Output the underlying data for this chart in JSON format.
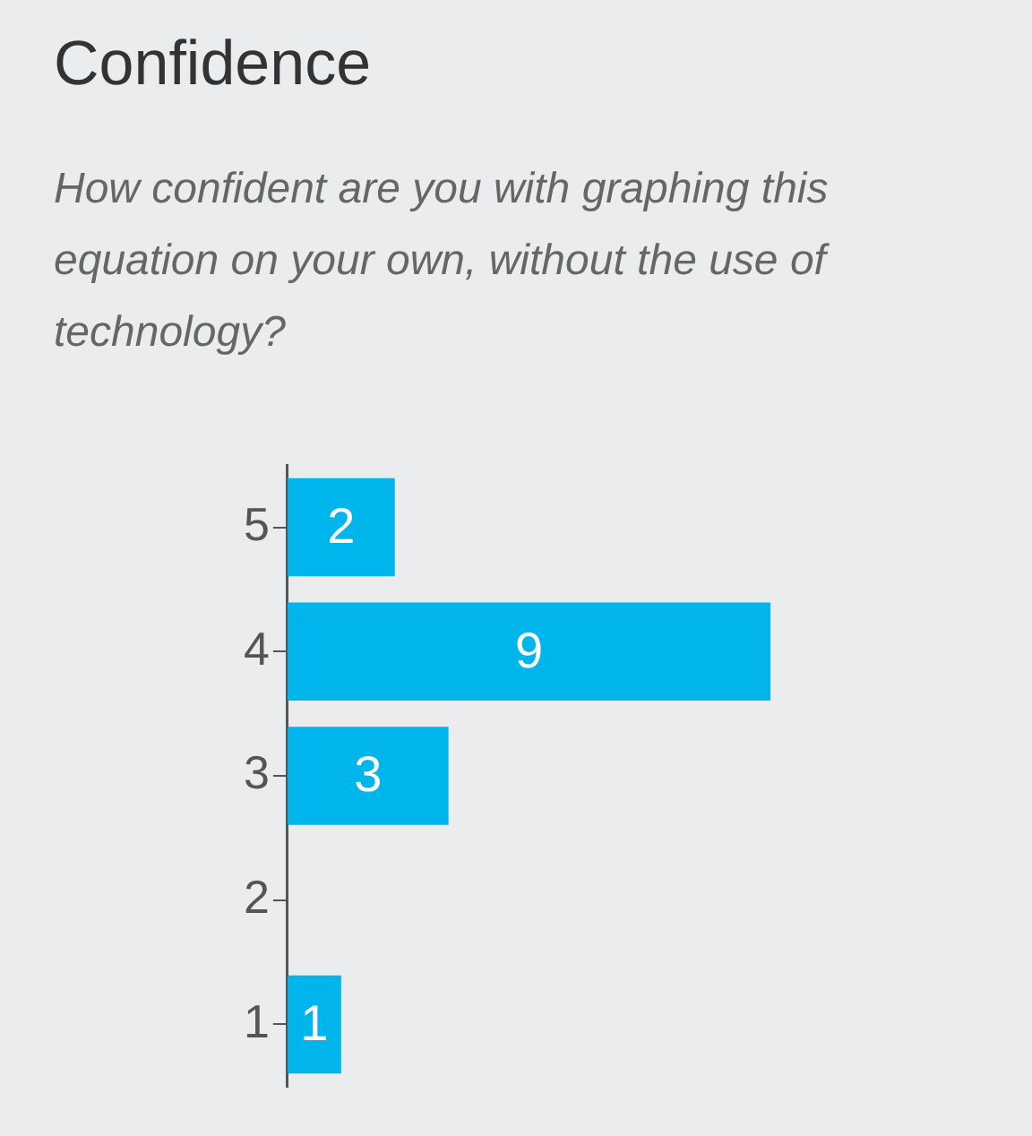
{
  "chart_data": {
    "type": "bar",
    "title": "Confidence",
    "subtitle": "How confident are you with graphing this equation on your own, without the use of technology?",
    "orientation": "horizontal",
    "categories": [
      "5",
      "4",
      "3",
      "2",
      "1"
    ],
    "values": [
      2,
      9,
      3,
      null,
      1
    ],
    "color": "#00b4ec",
    "data_labels": true,
    "tick_labels": "y",
    "legend": false
  }
}
